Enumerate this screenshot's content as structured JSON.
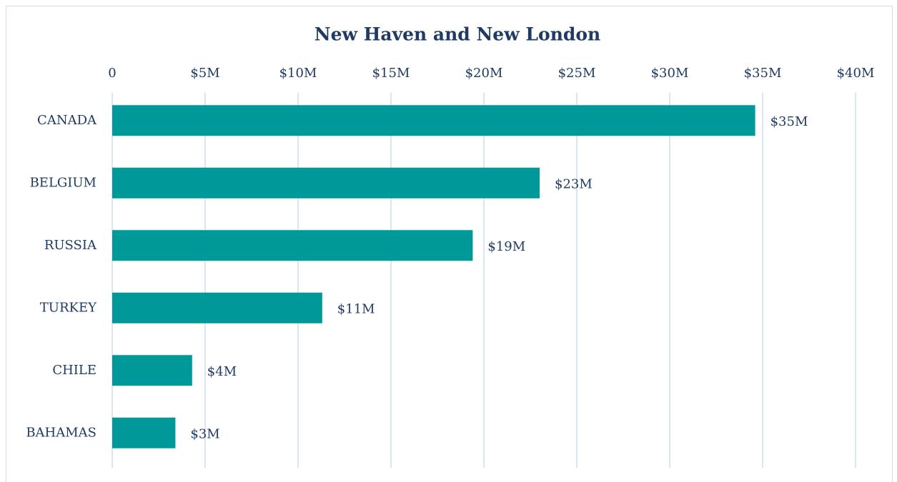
{
  "chart_data": {
    "type": "bar",
    "orientation": "horizontal",
    "title": "New Haven and New London",
    "categories": [
      "CANADA",
      "BELGIUM",
      "RUSSIA",
      "TURKEY",
      "CHILE",
      "BAHAMAS"
    ],
    "values": [
      34600000,
      23000000,
      19400000,
      11300000,
      4300000,
      3400000
    ],
    "value_labels": [
      "$35M",
      "$23M",
      "$19M",
      "$11M",
      "$4M",
      "$3M"
    ],
    "color": "#009999",
    "xlim": [
      0,
      40000000
    ],
    "xticks": [
      0,
      {
        "value": 5000000,
        "label": "$5M"
      },
      {
        "value": 10000000,
        "label": "$10M"
      },
      {
        "value": 15000000,
        "label": "$15M"
      },
      {
        "value": 20000000,
        "label": "$20M"
      },
      {
        "value": 25000000,
        "label": "$25M"
      },
      {
        "value": 30000000,
        "label": "$30M"
      },
      {
        "value": 35000000,
        "label": "$35M"
      },
      {
        "value": 40000000,
        "label": "$40M"
      }
    ],
    "grid": true
  }
}
